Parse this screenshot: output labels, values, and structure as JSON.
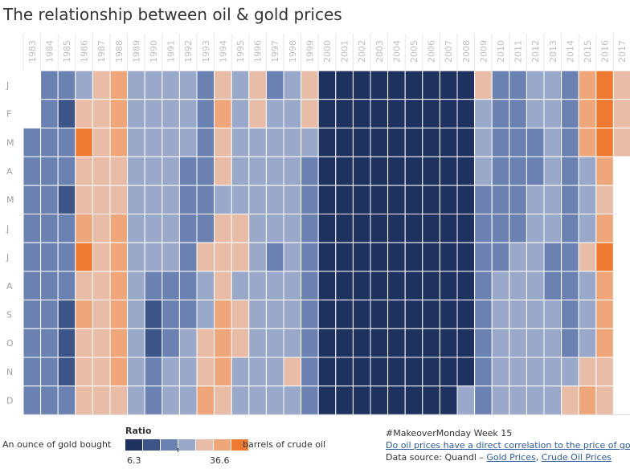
{
  "chart_data": {
    "type": "heatmap",
    "title": "The relationship between oil & gold prices",
    "x_categories": [
      "1983",
      "1984",
      "1985",
      "1986",
      "1987",
      "1988",
      "1989",
      "1990",
      "1991",
      "1992",
      "1993",
      "1994",
      "1995",
      "1996",
      "1997",
      "1998",
      "1999",
      "2000",
      "2001",
      "2002",
      "2003",
      "2004",
      "2005",
      "2006",
      "2007",
      "2008",
      "2009",
      "2010",
      "2011",
      "2012",
      "2013",
      "2014",
      "2015",
      "2016",
      "2017"
    ],
    "y_categories": [
      "J",
      "F",
      "M",
      "A",
      "M",
      "J",
      "J",
      "A",
      "S",
      "O",
      "N",
      "D"
    ],
    "value_range": [
      6.3,
      36.6
    ],
    "legend": {
      "title": "Ratio",
      "min_label": "6.3",
      "max_label": "36.6",
      "left_label": "An ounce of gold bought",
      "right_label": "barrels of crude oil",
      "colors": [
        "#1f325f",
        "#3d5488",
        "#6b81b1",
        "#9aa9c9",
        "#e8bca7",
        "#eea67a",
        "#ee7a32"
      ]
    },
    "values": [
      [
        null,
        12,
        13,
        19,
        21,
        27,
        18,
        16,
        16,
        17,
        13,
        23,
        19,
        22,
        13,
        18,
        23,
        8,
        8,
        8,
        8,
        8,
        8,
        8,
        8,
        8,
        22,
        12,
        12,
        17,
        15,
        12,
        24,
        31,
        21
      ],
      [
        null,
        13,
        10,
        21,
        21,
        27,
        18,
        16,
        16,
        17,
        13,
        24,
        19,
        20,
        17,
        19,
        23,
        8,
        8,
        8,
        8,
        8,
        8,
        8,
        8,
        8,
        18,
        13,
        12,
        17,
        15,
        13,
        24,
        33,
        21
      ],
      [
        13,
        13,
        13,
        31,
        20,
        27,
        18,
        16,
        16,
        15,
        13,
        22,
        19,
        19,
        16,
        18,
        17,
        8,
        8,
        8,
        8,
        8,
        8,
        8,
        8,
        8,
        16,
        13,
        12,
        14,
        15,
        13,
        24,
        32,
        21
      ],
      [
        13,
        13,
        12,
        21,
        21,
        21,
        18,
        16,
        16,
        13,
        13,
        22,
        18,
        18,
        18,
        17,
        13,
        8,
        8,
        8,
        8,
        9,
        8,
        8,
        8,
        8,
        16,
        12,
        12,
        13,
        15,
        13,
        17,
        27,
        null
      ],
      [
        13,
        13,
        10,
        21,
        21,
        21,
        17,
        16,
        16,
        13,
        13,
        18,
        18,
        18,
        18,
        17,
        13,
        8,
        8,
        8,
        8,
        9,
        8,
        8,
        8,
        8,
        13,
        12,
        13,
        16,
        15,
        13,
        17,
        23,
        null
      ],
      [
        13,
        13,
        12,
        24,
        21,
        25,
        17,
        16,
        16,
        13,
        13,
        20,
        22,
        17,
        18,
        17,
        13,
        8,
        8,
        8,
        8,
        9,
        8,
        8,
        8,
        8,
        13,
        12,
        13,
        17,
        15,
        13,
        17,
        26,
        null
      ],
      [
        13,
        13,
        13,
        32,
        21,
        25,
        17,
        16,
        16,
        13,
        22,
        21,
        22,
        17,
        13,
        17,
        13,
        8,
        8,
        8,
        8,
        9,
        8,
        8,
        8,
        8,
        12,
        12,
        17,
        17,
        13,
        13,
        21,
        31,
        null
      ],
      [
        13,
        13,
        13,
        21,
        21,
        25,
        17,
        13,
        13,
        13,
        16,
        23,
        18,
        17,
        17,
        17,
        13,
        9,
        9,
        9,
        8,
        8,
        8,
        8,
        8,
        8,
        12,
        16,
        17,
        17,
        13,
        13,
        17,
        26,
        null
      ],
      [
        13,
        13,
        10,
        25,
        21,
        25,
        18,
        10,
        13,
        13,
        17,
        24,
        22,
        17,
        17,
        17,
        13,
        9,
        9,
        9,
        8,
        9,
        8,
        8,
        8,
        8,
        12,
        17,
        17,
        16,
        15,
        13,
        17,
        27,
        null
      ],
      [
        13,
        13,
        10,
        21,
        21,
        25,
        18,
        10,
        13,
        16,
        23,
        24,
        22,
        17,
        17,
        17,
        12,
        9,
        9,
        9,
        8,
        8,
        8,
        8,
        8,
        8,
        12,
        17,
        17,
        16,
        15,
        13,
        17,
        26,
        null
      ],
      [
        13,
        13,
        10,
        21,
        23,
        25,
        18,
        13,
        16,
        16,
        22,
        24,
        18,
        17,
        17,
        22,
        12,
        9,
        9,
        9,
        8,
        8,
        8,
        8,
        8,
        9,
        12,
        17,
        17,
        17,
        15,
        16,
        21,
        21,
        null
      ],
      [
        13,
        13,
        13,
        21,
        23,
        21,
        18,
        13,
        16,
        16,
        25,
        22,
        18,
        15,
        17,
        19,
        13,
        8,
        9,
        9,
        8,
        8,
        8,
        8,
        8,
        16,
        12,
        17,
        17,
        17,
        15,
        21,
        27,
        22,
        null
      ]
    ]
  },
  "footer": {
    "tag": "#MakeoverMonday Week 15",
    "question": "Do oil prices have a direct correlation to the price of gold?",
    "source_prefix": "Data source: Quandl – ",
    "link_gold": "Gold Prices",
    "separator": ", ",
    "link_oil": "Crude Oil Prices"
  }
}
